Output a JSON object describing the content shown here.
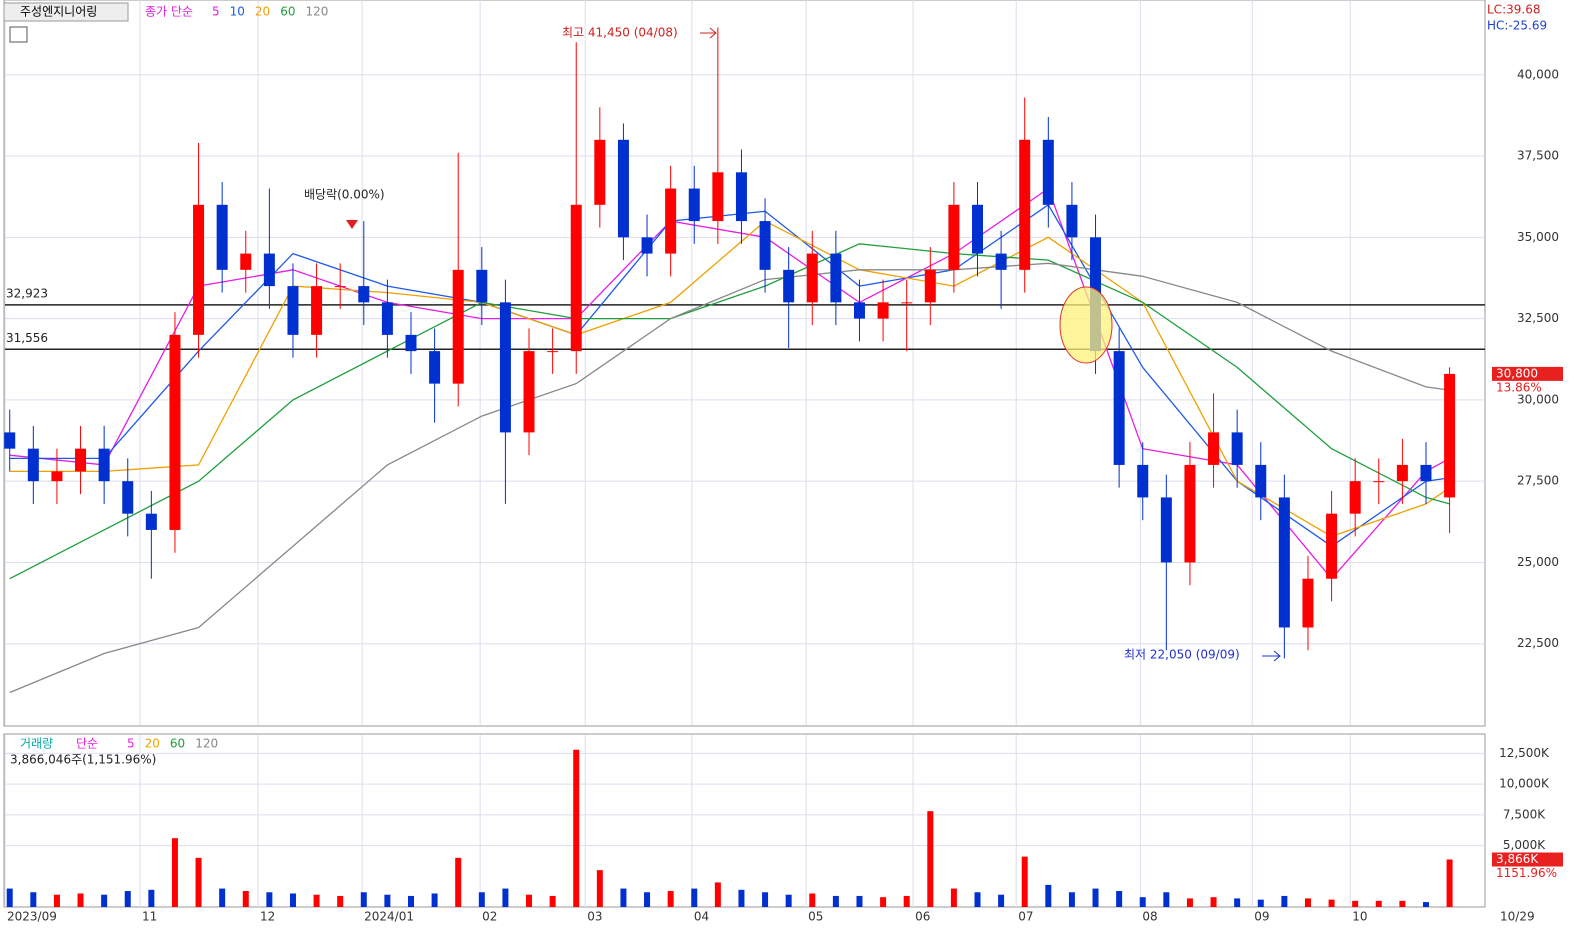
{
  "chart_data": {
    "type": "candlestick",
    "title": "주성엔지니어링",
    "legend_label": "종가 단순",
    "ma_series": [
      {
        "name": "5",
        "color": "#e61ee6",
        "x": [
          0,
          4,
          8,
          12,
          16,
          20,
          24,
          28,
          32,
          36,
          40,
          44,
          48,
          52,
          56,
          60,
          61
        ],
        "values": [
          28300,
          28000,
          33500,
          34000,
          33000,
          32500,
          32500,
          35500,
          35000,
          33000,
          34500,
          36500,
          28500,
          28000,
          24500,
          27800,
          28200
        ]
      },
      {
        "name": "10",
        "color": "#1e5ae6",
        "x": [
          0,
          4,
          8,
          12,
          16,
          20,
          24,
          28,
          32,
          36,
          40,
          44,
          48,
          52,
          56,
          60,
          61
        ],
        "values": [
          28200,
          28200,
          31500,
          34500,
          33500,
          33000,
          32000,
          35500,
          35800,
          33500,
          34000,
          36000,
          31000,
          27500,
          25500,
          27500,
          27600
        ]
      },
      {
        "name": "20",
        "color": "#f0a000",
        "x": [
          0,
          4,
          8,
          12,
          16,
          20,
          24,
          28,
          32,
          36,
          40,
          44,
          48,
          52,
          56,
          60,
          61
        ],
        "values": [
          27800,
          27800,
          28000,
          33500,
          33300,
          33000,
          32000,
          33000,
          35500,
          34000,
          33500,
          35000,
          33000,
          27500,
          25800,
          26800,
          27300
        ]
      },
      {
        "name": "60",
        "color": "#1e9e3c",
        "x": [
          0,
          4,
          8,
          12,
          16,
          20,
          24,
          28,
          32,
          36,
          40,
          44,
          48,
          52,
          56,
          60,
          61
        ],
        "values": [
          24500,
          26000,
          27500,
          30000,
          31500,
          33000,
          32500,
          32500,
          33500,
          34800,
          34500,
          34300,
          33000,
          31000,
          28500,
          27000,
          26800
        ]
      },
      {
        "name": "120",
        "color": "#888888",
        "x": [
          0,
          4,
          8,
          12,
          16,
          20,
          24,
          28,
          32,
          36,
          40,
          44,
          48,
          52,
          56,
          60,
          61
        ],
        "values": [
          21000,
          22200,
          23000,
          25500,
          28000,
          29500,
          30500,
          32500,
          33700,
          34000,
          34000,
          34200,
          33800,
          33000,
          31500,
          30400,
          30300
        ]
      }
    ],
    "open": [
      29000,
      28500,
      27500,
      27800,
      28500,
      27500,
      26500,
      26000,
      32000,
      36000,
      34000,
      34500,
      33500,
      32000,
      33500,
      33500,
      33000,
      32000,
      31500,
      30500,
      34000,
      33000,
      29000,
      31500,
      31500,
      36000,
      38000,
      35000,
      34500,
      36500,
      35500,
      37000,
      35500,
      34000,
      33000,
      34500,
      33000,
      32500,
      33000,
      33000,
      34000,
      36000,
      34500,
      34000,
      38000,
      36000,
      35000,
      31500,
      28000,
      27000,
      25000,
      28000,
      29000,
      28000,
      27000,
      23000,
      24500,
      26500,
      27500,
      27500,
      28000,
      27000
    ],
    "high": [
      29700,
      29200,
      28500,
      29200,
      29200,
      28200,
      27200,
      32700,
      37900,
      36700,
      35200,
      36500,
      34200,
      34200,
      34200,
      35500,
      33700,
      32700,
      32200,
      37600,
      34700,
      33700,
      32200,
      32200,
      41000,
      39000,
      38500,
      35700,
      37200,
      37200,
      41450,
      37700,
      36200,
      34700,
      35200,
      35200,
      33700,
      33700,
      33700,
      34700,
      36700,
      36700,
      35200,
      39300,
      38700,
      36700,
      35700,
      32200,
      28700,
      27700,
      28700,
      30200,
      29700,
      28700,
      27700,
      25200,
      27200,
      28200,
      28200,
      28800,
      28700,
      31000
    ],
    "low": [
      27800,
      26800,
      26800,
      27100,
      26800,
      25800,
      24500,
      25300,
      31300,
      33300,
      33300,
      32800,
      31300,
      31300,
      32800,
      32300,
      31300,
      30800,
      29300,
      29800,
      32300,
      26800,
      28300,
      30800,
      30800,
      35300,
      34300,
      33800,
      33800,
      34800,
      34800,
      34800,
      33300,
      31600,
      32300,
      32300,
      31800,
      31800,
      31500,
      32300,
      33300,
      33800,
      32800,
      33300,
      35300,
      34300,
      30800,
      27300,
      26300,
      22300,
      24300,
      27300,
      27300,
      26300,
      22050,
      22300,
      23800,
      25800,
      26800,
      26800,
      26800,
      25900
    ],
    "close": [
      28500,
      27500,
      27800,
      28500,
      27500,
      26500,
      26000,
      32000,
      36000,
      34000,
      34500,
      33500,
      32000,
      33500,
      33500,
      33000,
      32000,
      31500,
      30500,
      34000,
      33000,
      29000,
      31500,
      31500,
      36000,
      38000,
      35000,
      34500,
      36500,
      35500,
      37000,
      35500,
      34000,
      33000,
      34500,
      33000,
      32500,
      33000,
      33000,
      34000,
      36000,
      34500,
      34000,
      38000,
      36000,
      35000,
      31500,
      28000,
      27000,
      25000,
      28000,
      29000,
      28000,
      27000,
      23000,
      24500,
      26500,
      27500,
      27500,
      28000,
      27500,
      30800
    ],
    "up_color": "#ff0000",
    "down_color": "#0030d0",
    "xlim": [
      -0.2,
      62.5
    ],
    "xticks": [
      {
        "value": -0.2,
        "label": "2023/09"
      },
      {
        "value": 5.52,
        "label": "11"
      },
      {
        "value": 10.52,
        "label": "12"
      },
      {
        "value": 14.93,
        "label": "2024/01"
      },
      {
        "value": 19.93,
        "label": "02"
      },
      {
        "value": 24.38,
        "label": "03"
      },
      {
        "value": 28.9,
        "label": "04"
      },
      {
        "value": 33.74,
        "label": "05"
      },
      {
        "value": 38.27,
        "label": "06"
      },
      {
        "value": 42.64,
        "label": "07"
      },
      {
        "value": 47.9,
        "label": "08"
      },
      {
        "value": 52.64,
        "label": "09"
      },
      {
        "value": 56.79,
        "label": "10"
      }
    ],
    "last_date": "10/29",
    "ylim": [
      20000,
      42300
    ],
    "yticks": [
      {
        "value": 22500,
        "label": "22,500"
      },
      {
        "value": 25000,
        "label": "25,000"
      },
      {
        "value": 27500,
        "label": "27,500"
      },
      {
        "value": 30000,
        "label": "30,000"
      },
      {
        "value": 32500,
        "label": "32,500"
      },
      {
        "value": 35000,
        "label": "35,000"
      },
      {
        "value": 37500,
        "label": "37,500"
      },
      {
        "value": 40000,
        "label": "40,000"
      }
    ],
    "hlines": [
      {
        "value": 32923,
        "label": "32,923"
      },
      {
        "value": 31556,
        "label": "31,556"
      }
    ],
    "last_price": {
      "value": 30800,
      "label": "30,800"
    },
    "change_label": "13.86%",
    "lc": "LC:39.68",
    "hc": "HC:-25.69",
    "high_annotation": "최고 41,450 (04/08)",
    "low_annotation": "최저 22,050 (09/09)",
    "dividend_annotation": "배당락(0.00%)",
    "volume": {
      "legend_label": "거래량",
      "legend_ma": "단순",
      "ma_names": [
        {
          "name": "5",
          "color": "#e61ee6"
        },
        {
          "name": "20",
          "color": "#f0a000"
        },
        {
          "name": "60",
          "color": "#1e9e3c"
        },
        {
          "name": "120",
          "color": "#888888"
        }
      ],
      "summary": "3,866,046주(1,151.96%)",
      "values": [
        1500,
        1200,
        1000,
        1100,
        1000,
        1300,
        1400,
        5600,
        4000,
        1500,
        1300,
        1200,
        1100,
        1000,
        900,
        1200,
        1000,
        900,
        1100,
        4000,
        1200,
        1500,
        1000,
        900,
        12800,
        3000,
        1500,
        1200,
        1300,
        1500,
        2000,
        1400,
        1200,
        1000,
        1100,
        900,
        900,
        800,
        900,
        7800,
        1500,
        1200,
        1000,
        4100,
        1800,
        1200,
        1500,
        1300,
        800,
        1200,
        700,
        800,
        700,
        600,
        900,
        700,
        600,
        500,
        500,
        500,
        400,
        3866
      ],
      "ylim": [
        0,
        14000
      ],
      "yticks": [
        {
          "value": 5000,
          "label": "5,000K"
        },
        {
          "value": 7500,
          "label": "7,500K"
        },
        {
          "value": 10000,
          "label": "10,000K"
        },
        {
          "value": 12500,
          "label": "12,500K"
        }
      ],
      "last_volume": {
        "value": 3866,
        "label": "3,866K"
      },
      "change_label": "1151.96%"
    }
  }
}
